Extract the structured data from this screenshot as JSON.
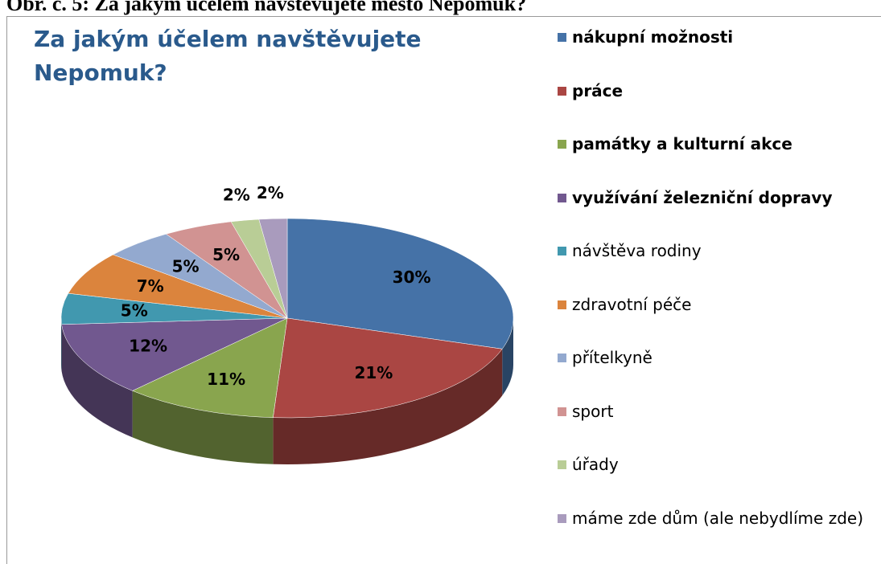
{
  "caption": "Obr. č. 5: Za jakým účelem navštěvujete město Nepomuk?",
  "chart_data": {
    "type": "pie3d",
    "title": "Za jakým účelem navštěvujete Nepomuk?",
    "categories": [
      "nákupní možnosti",
      "práce",
      "památky a kulturní akce",
      "využívání železniční dopravy",
      "návštěva rodiny",
      "zdravotní péče",
      "přítelkyně",
      "sport",
      "úřady",
      "máme zde dům (ale nebydlíme zde)"
    ],
    "values": [
      30,
      21,
      11,
      12,
      5,
      7,
      5,
      5,
      2,
      2
    ],
    "value_labels": [
      "30%",
      "21%",
      "11%",
      "12%",
      "5%",
      "7%",
      "5%",
      "5%",
      "2%",
      "2%"
    ],
    "colors": [
      "#4572a7",
      "#aa4643",
      "#89a54e",
      "#71588f",
      "#4198af",
      "#db843d",
      "#93a9cf",
      "#d19392",
      "#b9cd96",
      "#a99bbd"
    ],
    "legend": "right"
  }
}
